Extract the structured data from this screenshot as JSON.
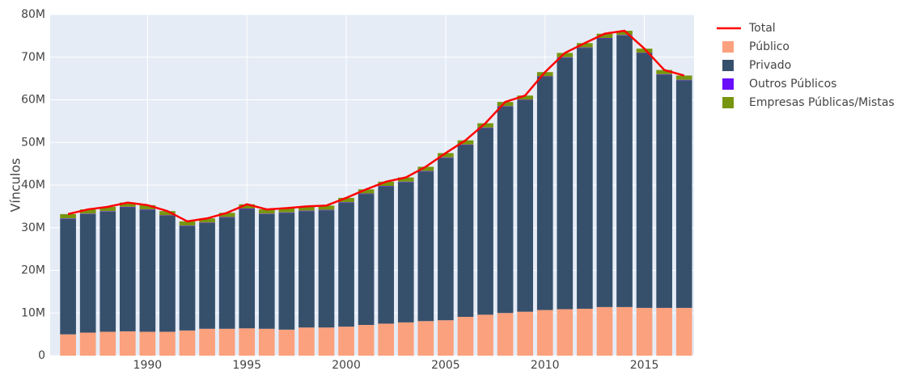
{
  "chart_data": {
    "type": "bar",
    "barmode": "stack",
    "y_label": "Vínculos",
    "x": [
      1986,
      1987,
      1988,
      1989,
      1990,
      1991,
      1992,
      1993,
      1994,
      1995,
      1996,
      1997,
      1998,
      1999,
      2000,
      2001,
      2002,
      2003,
      2004,
      2005,
      2006,
      2007,
      2008,
      2009,
      2010,
      2011,
      2012,
      2013,
      2014,
      2015,
      2016,
      2017
    ],
    "series": [
      {
        "name": "Total",
        "type": "line",
        "color": "#ff0000",
        "values": [
          33200000,
          34300000,
          34900000,
          35900000,
          35300000,
          33900000,
          31500000,
          32200000,
          33500000,
          35500000,
          34300000,
          34600000,
          35000000,
          35200000,
          37000000,
          39000000,
          40800000,
          41800000,
          44300000,
          47500000,
          50500000,
          54500000,
          59500000,
          61000000,
          66500000,
          71000000,
          73300000,
          75500000,
          76200000,
          72000000,
          67000000,
          65700000
        ]
      },
      {
        "name": "Público",
        "color": "#fca17d",
        "values": [
          5000000,
          5400000,
          5600000,
          5700000,
          5600000,
          5600000,
          5900000,
          6300000,
          6300000,
          6400000,
          6300000,
          6100000,
          6600000,
          6600000,
          6800000,
          7200000,
          7500000,
          7800000,
          8100000,
          8300000,
          9100000,
          9600000,
          10000000,
          10300000,
          10700000,
          10900000,
          11000000,
          11400000,
          11400000,
          11200000,
          11200000,
          11200000
        ]
      },
      {
        "name": "Privado",
        "color": "#36506c",
        "values": [
          27100000,
          27800000,
          28200000,
          29100000,
          28600000,
          27200000,
          24500000,
          24800000,
          26100000,
          28000000,
          26900000,
          27400000,
          27300000,
          27500000,
          29100000,
          30700000,
          32200000,
          32900000,
          35100000,
          38100000,
          40300000,
          43800000,
          48400000,
          49600000,
          54700000,
          59000000,
          61200000,
          63000000,
          63700000,
          59700000,
          54700000,
          53400000
        ]
      },
      {
        "name": "Outros Públicos",
        "color": "#6a0dfa",
        "values": [
          100000,
          100000,
          100000,
          100000,
          100000,
          100000,
          100000,
          100000,
          100000,
          100000,
          100000,
          100000,
          100000,
          100000,
          100000,
          100000,
          100000,
          100000,
          100000,
          100000,
          100000,
          100000,
          100000,
          100000,
          100000,
          100000,
          100000,
          100000,
          100000,
          100000,
          100000,
          100000
        ]
      },
      {
        "name": "Empresas Públicas/Mistas",
        "color": "#77950f",
        "values": [
          1000000,
          1000000,
          1000000,
          1000000,
          1000000,
          1000000,
          1000000,
          1000000,
          1000000,
          1000000,
          1000000,
          1000000,
          1000000,
          1000000,
          1000000,
          1000000,
          1000000,
          1000000,
          1000000,
          1000000,
          1000000,
          1000000,
          1000000,
          1000000,
          1000000,
          1000000,
          1000000,
          1000000,
          1000000,
          1000000,
          1000000,
          1000000
        ]
      }
    ],
    "xlim": [
      1985.1,
      2017.5
    ],
    "xticks": [
      1990,
      1995,
      2000,
      2005,
      2010,
      2015
    ],
    "ylim": [
      0,
      80000000
    ],
    "yticks": [
      0,
      {
        "value": 10000000,
        "label": "10M"
      },
      {
        "value": 20000000,
        "label": "20M"
      },
      {
        "value": 30000000,
        "label": "30M"
      },
      {
        "value": 40000000,
        "label": "40M"
      },
      {
        "value": 50000000,
        "label": "50M"
      },
      {
        "value": 60000000,
        "label": "60M"
      },
      {
        "value": 70000000,
        "label": "70M"
      },
      {
        "value": 80000000,
        "label": "80M"
      }
    ],
    "grid": true,
    "legend": "right"
  }
}
